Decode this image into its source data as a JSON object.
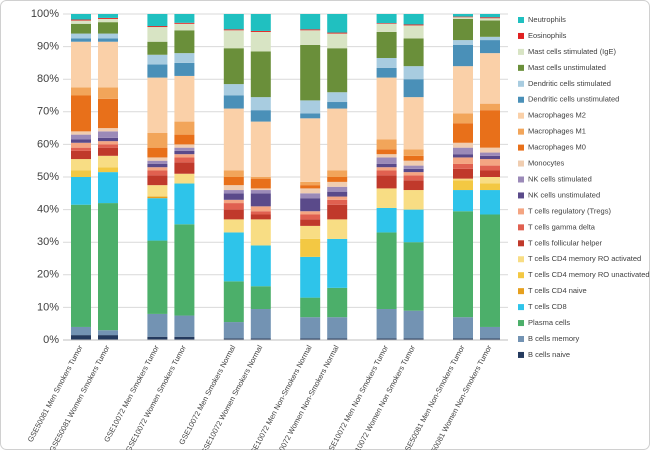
{
  "chart_data": {
    "type": "stacked_bar",
    "categories": [
      "GSE50081 Men Smokers Tumor",
      "GSE50081 Women Smokers Tumor",
      "GSE10072 Men Smokers Tumor",
      "GSE10072 Women Smokers Tumor",
      "GSE10072 Men Smokers Normal",
      "GSE10072 Women Smokers Normal",
      "GSE10072 Men Non-Smokers Normal",
      "GSE10072 Women Non-Smokers Normal",
      "GSE10072 Men Non Smokers Tumor",
      "GSE10072 Women Non Smokers Tumor",
      "GSE50081 Men Non-Smokers Tumor",
      "GSE50081 Women Non-Smokers Tumor"
    ],
    "series": [
      {
        "name": "B cells naive",
        "color": "#243a5e",
        "values": [
          1.5,
          1.5,
          1,
          1,
          0.5,
          0.5,
          0.5,
          0.5,
          0.5,
          0.5,
          0.5,
          0.5
        ]
      },
      {
        "name": "B cells memory",
        "color": "#7393b3",
        "values": [
          2.5,
          1.5,
          7,
          6.5,
          5,
          9,
          6.5,
          6.5,
          9,
          8.5,
          6.5,
          3.5
        ]
      },
      {
        "name": "Plasma cells",
        "color": "#4caf6a",
        "values": [
          37.5,
          39,
          22.5,
          28,
          12.5,
          7,
          6,
          9,
          23.5,
          21,
          32.5,
          34.5
        ]
      },
      {
        "name": "T cells CD8",
        "color": "#2ec4ea",
        "values": [
          8.5,
          9.5,
          13,
          12.5,
          15,
          12.5,
          12.5,
          15,
          7.5,
          10,
          6.5,
          7.5
        ]
      },
      {
        "name": "T cells CD4 naive",
        "color": "#e6a01e",
        "values": [
          0,
          0,
          0.5,
          0,
          0,
          0,
          0,
          0,
          0,
          0,
          0,
          0
        ]
      },
      {
        "name": "T cells CD4 memory RO unactivated",
        "color": "#f3c843",
        "values": [
          2,
          1.5,
          0,
          0,
          0,
          0,
          5.5,
          0,
          0,
          0,
          3,
          2
        ]
      },
      {
        "name": "T cells CD4 memory RO activated",
        "color": "#f8dd84",
        "values": [
          3.5,
          3.5,
          3.5,
          3,
          4,
          8,
          4,
          6,
          6,
          6,
          0.5,
          2
        ]
      },
      {
        "name": "T cells follicular helper",
        "color": "#c0392b",
        "values": [
          2.5,
          2.5,
          3,
          3.5,
          3,
          1.5,
          2,
          4.5,
          4,
          3,
          3,
          2
        ]
      },
      {
        "name": "T cells gamma delta",
        "color": "#e06050",
        "values": [
          1,
          1,
          1.5,
          1.5,
          2,
          1,
          1.5,
          1.5,
          1.5,
          1.5,
          1.5,
          1.5
        ]
      },
      {
        "name": "T cells regulatory (Tregs)",
        "color": "#f4a582",
        "values": [
          1.5,
          1,
          1,
          1,
          1,
          1.5,
          1,
          1,
          1,
          1,
          2,
          2
        ]
      },
      {
        "name": "NK cells unstimulated",
        "color": "#5a4a8a",
        "values": [
          1,
          1,
          1,
          1,
          2,
          4,
          4,
          1.5,
          1,
          1,
          1,
          1
        ]
      },
      {
        "name": "NK cells stimulated",
        "color": "#9b8ab8",
        "values": [
          1.5,
          2,
          1,
          1,
          1,
          1,
          1.5,
          1.5,
          2,
          1,
          2,
          1
        ]
      },
      {
        "name": "Monocytes",
        "color": "#f0cdb0",
        "values": [
          1,
          1,
          1,
          1,
          1.5,
          0.5,
          1.5,
          1.5,
          1,
          1.5,
          1.5,
          1.5
        ]
      },
      {
        "name": "Macrophages M0",
        "color": "#e8701a",
        "values": [
          11,
          9,
          3,
          3,
          2.5,
          3,
          1,
          1.5,
          1.5,
          1.5,
          6,
          11.5
        ]
      },
      {
        "name": "Macrophages M1",
        "color": "#f2a55a",
        "values": [
          2.5,
          3.5,
          4.5,
          4,
          2,
          0.5,
          1,
          2,
          3,
          2,
          3,
          2
        ]
      },
      {
        "name": "Macrophages M2",
        "color": "#fad0a8",
        "values": [
          14,
          14,
          17,
          14,
          19,
          17,
          19.5,
          19,
          19,
          16,
          14.5,
          15.5
        ]
      },
      {
        "name": "Dendritic cells unstimulated",
        "color": "#4a90b8",
        "values": [
          1,
          1,
          4,
          4,
          4,
          3.5,
          1.5,
          2,
          3,
          5.5,
          6.5,
          4
        ]
      },
      {
        "name": "Dendritic cells stimulated",
        "color": "#a8cce0",
        "values": [
          1.5,
          1.5,
          3,
          3,
          3.5,
          4,
          4,
          3,
          3,
          4,
          1.5,
          1
        ]
      },
      {
        "name": "Mast cells unstimulated",
        "color": "#6a8f3a",
        "values": [
          3,
          3.5,
          4,
          7,
          11,
          14,
          17,
          13.5,
          8,
          8.5,
          6.5,
          5
        ]
      },
      {
        "name": "Mast cells stimulated (IgE)",
        "color": "#d8e4c4",
        "values": [
          1,
          1,
          4.5,
          2,
          5.5,
          6,
          4.5,
          4.5,
          2.5,
          4,
          0.5,
          0.7
        ]
      },
      {
        "name": "Eosinophils",
        "color": "#e02020",
        "values": [
          0.3,
          0.3,
          0.3,
          0.3,
          0.3,
          0.3,
          0.3,
          0.3,
          0.2,
          0.3,
          0.2,
          0.3
        ]
      },
      {
        "name": "Neutrophils",
        "color": "#20c0c0",
        "values": [
          1.7,
          1.2,
          3.7,
          2.7,
          4.7,
          5.2,
          4.7,
          5.7,
          2.8,
          3.2,
          0.8,
          1
        ]
      }
    ],
    "ylim": [
      0,
      100
    ],
    "yticks": [
      {
        "value": 0,
        "label": "0%"
      },
      {
        "value": 10,
        "label": "10%"
      },
      {
        "value": 20,
        "label": "20%"
      },
      {
        "value": 30,
        "label": "30%"
      },
      {
        "value": 40,
        "label": "40%"
      },
      {
        "value": 50,
        "label": "50%"
      },
      {
        "value": 60,
        "label": "60%"
      },
      {
        "value": 70,
        "label": "70%"
      },
      {
        "value": 80,
        "label": "80%"
      },
      {
        "value": 90,
        "label": "90%"
      },
      {
        "value": 100,
        "label": "100%"
      }
    ],
    "grid": true,
    "legend": "right"
  }
}
